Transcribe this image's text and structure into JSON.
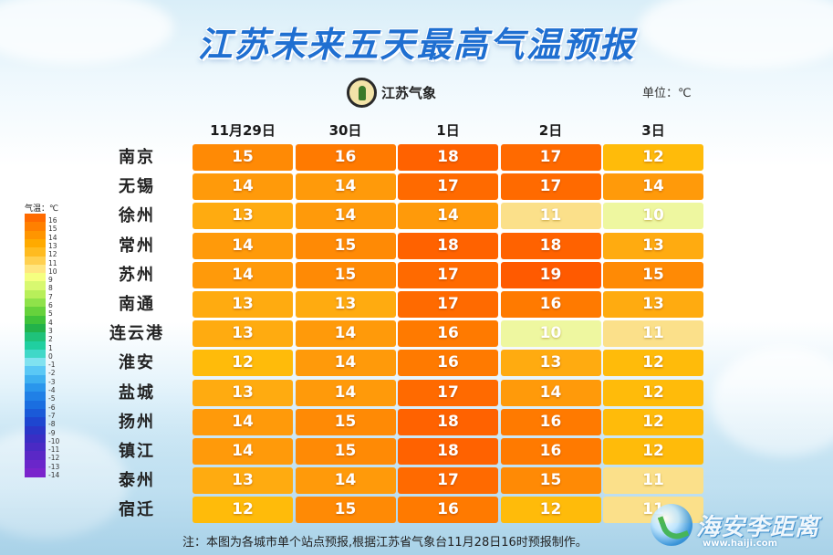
{
  "title": "江苏未来五天最高气温预报",
  "logo_text": "江苏气象",
  "unit_label": "单位：℃",
  "note": "注：本图为各城市单个站点预报,根据江苏省气象台11月28日16时预报制作。",
  "watermark": {
    "text": "海安李距离",
    "url": "www.haiji.com"
  },
  "chart_data": {
    "type": "table",
    "columns": [
      "11月29日",
      "30日",
      "1日",
      "2日",
      "3日"
    ],
    "rows": [
      {
        "city": "南京",
        "values": [
          15,
          16,
          18,
          17,
          12
        ]
      },
      {
        "city": "无锡",
        "values": [
          14,
          14,
          17,
          17,
          14
        ]
      },
      {
        "city": "徐州",
        "values": [
          13,
          14,
          14,
          11,
          10
        ]
      },
      {
        "city": "常州",
        "values": [
          14,
          15,
          18,
          18,
          13
        ]
      },
      {
        "city": "苏州",
        "values": [
          14,
          15,
          17,
          19,
          15
        ]
      },
      {
        "city": "南通",
        "values": [
          13,
          13,
          17,
          16,
          13
        ]
      },
      {
        "city": "连云港",
        "values": [
          13,
          14,
          16,
          10,
          11
        ]
      },
      {
        "city": "淮安",
        "values": [
          12,
          14,
          16,
          13,
          12
        ]
      },
      {
        "city": "盐城",
        "values": [
          13,
          14,
          17,
          14,
          12
        ]
      },
      {
        "city": "扬州",
        "values": [
          14,
          15,
          18,
          16,
          12
        ]
      },
      {
        "city": "镇江",
        "values": [
          14,
          15,
          18,
          16,
          12
        ]
      },
      {
        "city": "泰州",
        "values": [
          13,
          14,
          17,
          15,
          11
        ]
      },
      {
        "city": "宿迁",
        "values": [
          12,
          15,
          16,
          12,
          11
        ]
      }
    ],
    "legend": {
      "title": "气温：℃",
      "ticks": [
        "16",
        "15",
        "14",
        "13",
        "12",
        "11",
        "10",
        "9",
        "8",
        "7",
        "6",
        "5",
        "4",
        "3",
        "2",
        "1",
        "0",
        "-1",
        "-2",
        "-3",
        "-4",
        "-5",
        "-6",
        "-7",
        "-8",
        "-9",
        "-10",
        "-11",
        "-12",
        "-13",
        "-14"
      ],
      "colors": [
        "#ff6a00",
        "#ff8000",
        "#ff9500",
        "#ffaa00",
        "#ffbb20",
        "#ffd050",
        "#ffe680",
        "#f5ff80",
        "#d8f870",
        "#b8ef5a",
        "#8fe24a",
        "#66d23c",
        "#3fc23a",
        "#22b24a",
        "#1fc27a",
        "#20cfa0",
        "#40d8c8",
        "#80e2f0",
        "#5ac8f5",
        "#3eb0f0",
        "#2a96ec",
        "#2080e6",
        "#1a6ee0",
        "#1a5ad8",
        "#1e46d0",
        "#2a36c8",
        "#3a2ec4",
        "#4a2ac4",
        "#5a28c6",
        "#6a26ca",
        "#7a24cc"
      ]
    },
    "value_colors": {
      "10": "#eef7a0",
      "11": "#fbe08a",
      "12": "#ffbb0a",
      "13": "#ffab10",
      "14": "#ff9a0a",
      "15": "#ff8a05",
      "16": "#ff7a00",
      "17": "#ff6a00",
      "18": "#ff6200",
      "19": "#ff5a00"
    }
  }
}
